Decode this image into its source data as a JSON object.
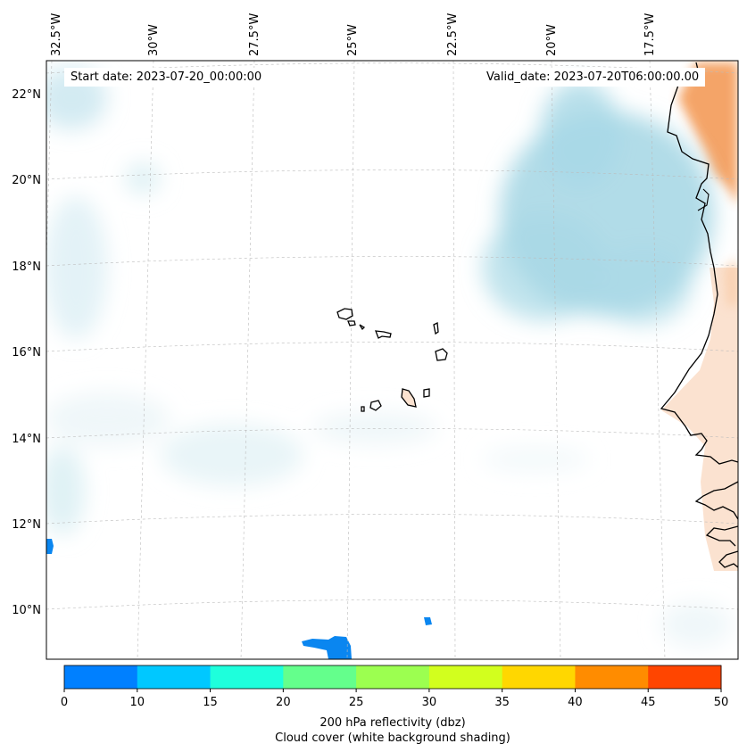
{
  "map": {
    "start_date": "Start date: 2023-07-20_00:00:00",
    "valid_date": "Valid_date: 2023-07-20T06:00:00.00",
    "lon_labels": [
      "32.5°W",
      "30°W",
      "27.5°W",
      "25°W",
      "22.5°W",
      "20°W",
      "17.5°W"
    ],
    "lat_labels": [
      "22°N",
      "20°N",
      "18°N",
      "16°N",
      "14°N",
      "12°N",
      "10°N"
    ],
    "gridlines": true,
    "features": [
      "Cape Verde islands",
      "West African coastline"
    ]
  },
  "colorbar": {
    "ticks": [
      "0",
      "10",
      "15",
      "20",
      "25",
      "30",
      "35",
      "40",
      "45",
      "50"
    ],
    "colors": [
      "#0080ff",
      "#00c8ff",
      "#1effdc",
      "#64ff8c",
      "#9cff50",
      "#d2ff1e",
      "#ffd700",
      "#ff8c00",
      "#ff4500"
    ],
    "label_line1": "200 hPa reflectivity (dbz)",
    "label_line2": "Cloud cover (white background shading)"
  },
  "colors": {
    "cloud": "#a8d8e6",
    "land_warm": "#f4a060",
    "land_light": "#fbe2d0",
    "reflectivity": "#0a86f0"
  }
}
